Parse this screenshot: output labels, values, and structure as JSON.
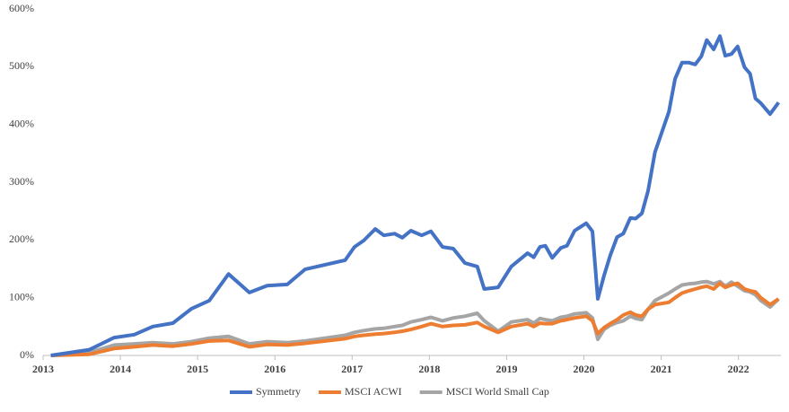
{
  "chart_data": {
    "type": "line",
    "x": [
      2013.1,
      2013.6,
      2013.92,
      2014.18,
      2014.42,
      2014.68,
      2014.92,
      2015.15,
      2015.4,
      2015.67,
      2015.9,
      2016.16,
      2016.39,
      2016.91,
      2017.03,
      2017.15,
      2017.3,
      2017.41,
      2017.55,
      2017.65,
      2017.76,
      2017.9,
      2018.02,
      2018.17,
      2018.31,
      2018.46,
      2018.62,
      2018.71,
      2018.89,
      2019.06,
      2019.27,
      2019.35,
      2019.43,
      2019.5,
      2019.59,
      2019.7,
      2019.78,
      2019.88,
      2020.03,
      2020.11,
      2020.18,
      2020.26,
      2020.34,
      2020.43,
      2020.51,
      2020.6,
      2020.67,
      2020.75,
      2020.83,
      2020.92,
      2021.1,
      2021.18,
      2021.27,
      2021.36,
      2021.44,
      2021.52,
      2021.59,
      2021.68,
      2021.76,
      2021.83,
      2021.91,
      2021.99,
      2022.08,
      2022.15,
      2022.22,
      2022.29,
      2022.41,
      2022.52
    ],
    "series": [
      {
        "name": "Symmetry",
        "color": "#4472c4",
        "values": [
          0,
          10,
          31,
          36,
          50,
          56,
          81,
          95,
          141,
          109,
          121,
          123,
          149,
          165,
          188,
          199,
          219,
          208,
          211,
          204,
          216,
          208,
          215,
          188,
          185,
          160,
          154,
          115,
          118,
          154,
          177,
          170,
          188,
          190,
          169,
          186,
          190,
          216,
          229,
          215,
          98,
          138,
          173,
          205,
          211,
          238,
          237,
          246,
          285,
          352,
          422,
          479,
          507,
          507,
          504,
          518,
          546,
          530,
          553,
          519,
          522,
          535,
          499,
          488,
          445,
          437,
          418,
          438
        ]
      },
      {
        "name": "MSCI ACWI",
        "color": "#ed7d31",
        "values": [
          0,
          2,
          12,
          15,
          18,
          16,
          20,
          25,
          26,
          15,
          19,
          18,
          21,
          29,
          33,
          35,
          37,
          38,
          40,
          42,
          45,
          50,
          55,
          50,
          52,
          53,
          57,
          50,
          40,
          50,
          55,
          50,
          56,
          55,
          55,
          60,
          62,
          65,
          68,
          60,
          38,
          48,
          55,
          62,
          70,
          75,
          70,
          68,
          80,
          88,
          92,
          100,
          108,
          112,
          115,
          118,
          120,
          115,
          125,
          118,
          122,
          125,
          115,
          112,
          110,
          100,
          88,
          98
        ]
      },
      {
        "name": "MSCI World Small Cap",
        "color": "#a5a5a5",
        "values": [
          0,
          5,
          18,
          20,
          22,
          20,
          24,
          30,
          33,
          20,
          24,
          22,
          25,
          35,
          40,
          43,
          46,
          47,
          50,
          52,
          58,
          62,
          66,
          60,
          65,
          68,
          73,
          60,
          42,
          58,
          62,
          56,
          64,
          62,
          60,
          66,
          68,
          72,
          74,
          65,
          28,
          45,
          52,
          57,
          60,
          68,
          64,
          62,
          80,
          95,
          108,
          115,
          122,
          124,
          125,
          127,
          128,
          124,
          128,
          120,
          127,
          120,
          112,
          110,
          105,
          95,
          84,
          98
        ]
      }
    ],
    "xlim": [
      2013,
      2022.55
    ],
    "xticks": [
      2013,
      2014,
      2015,
      2016,
      2017,
      2018,
      2019,
      2020,
      2021,
      2022
    ],
    "ylim": [
      0,
      600
    ],
    "yticks": [
      {
        "value": 0,
        "label": "0%"
      },
      {
        "value": 100,
        "label": "100%"
      },
      {
        "value": 200,
        "label": "200%"
      },
      {
        "value": 300,
        "label": "300%"
      },
      {
        "value": 400,
        "label": "400%"
      },
      {
        "value": 500,
        "label": "500%"
      },
      {
        "value": 600,
        "label": "600%"
      }
    ],
    "legend": "bottom"
  }
}
